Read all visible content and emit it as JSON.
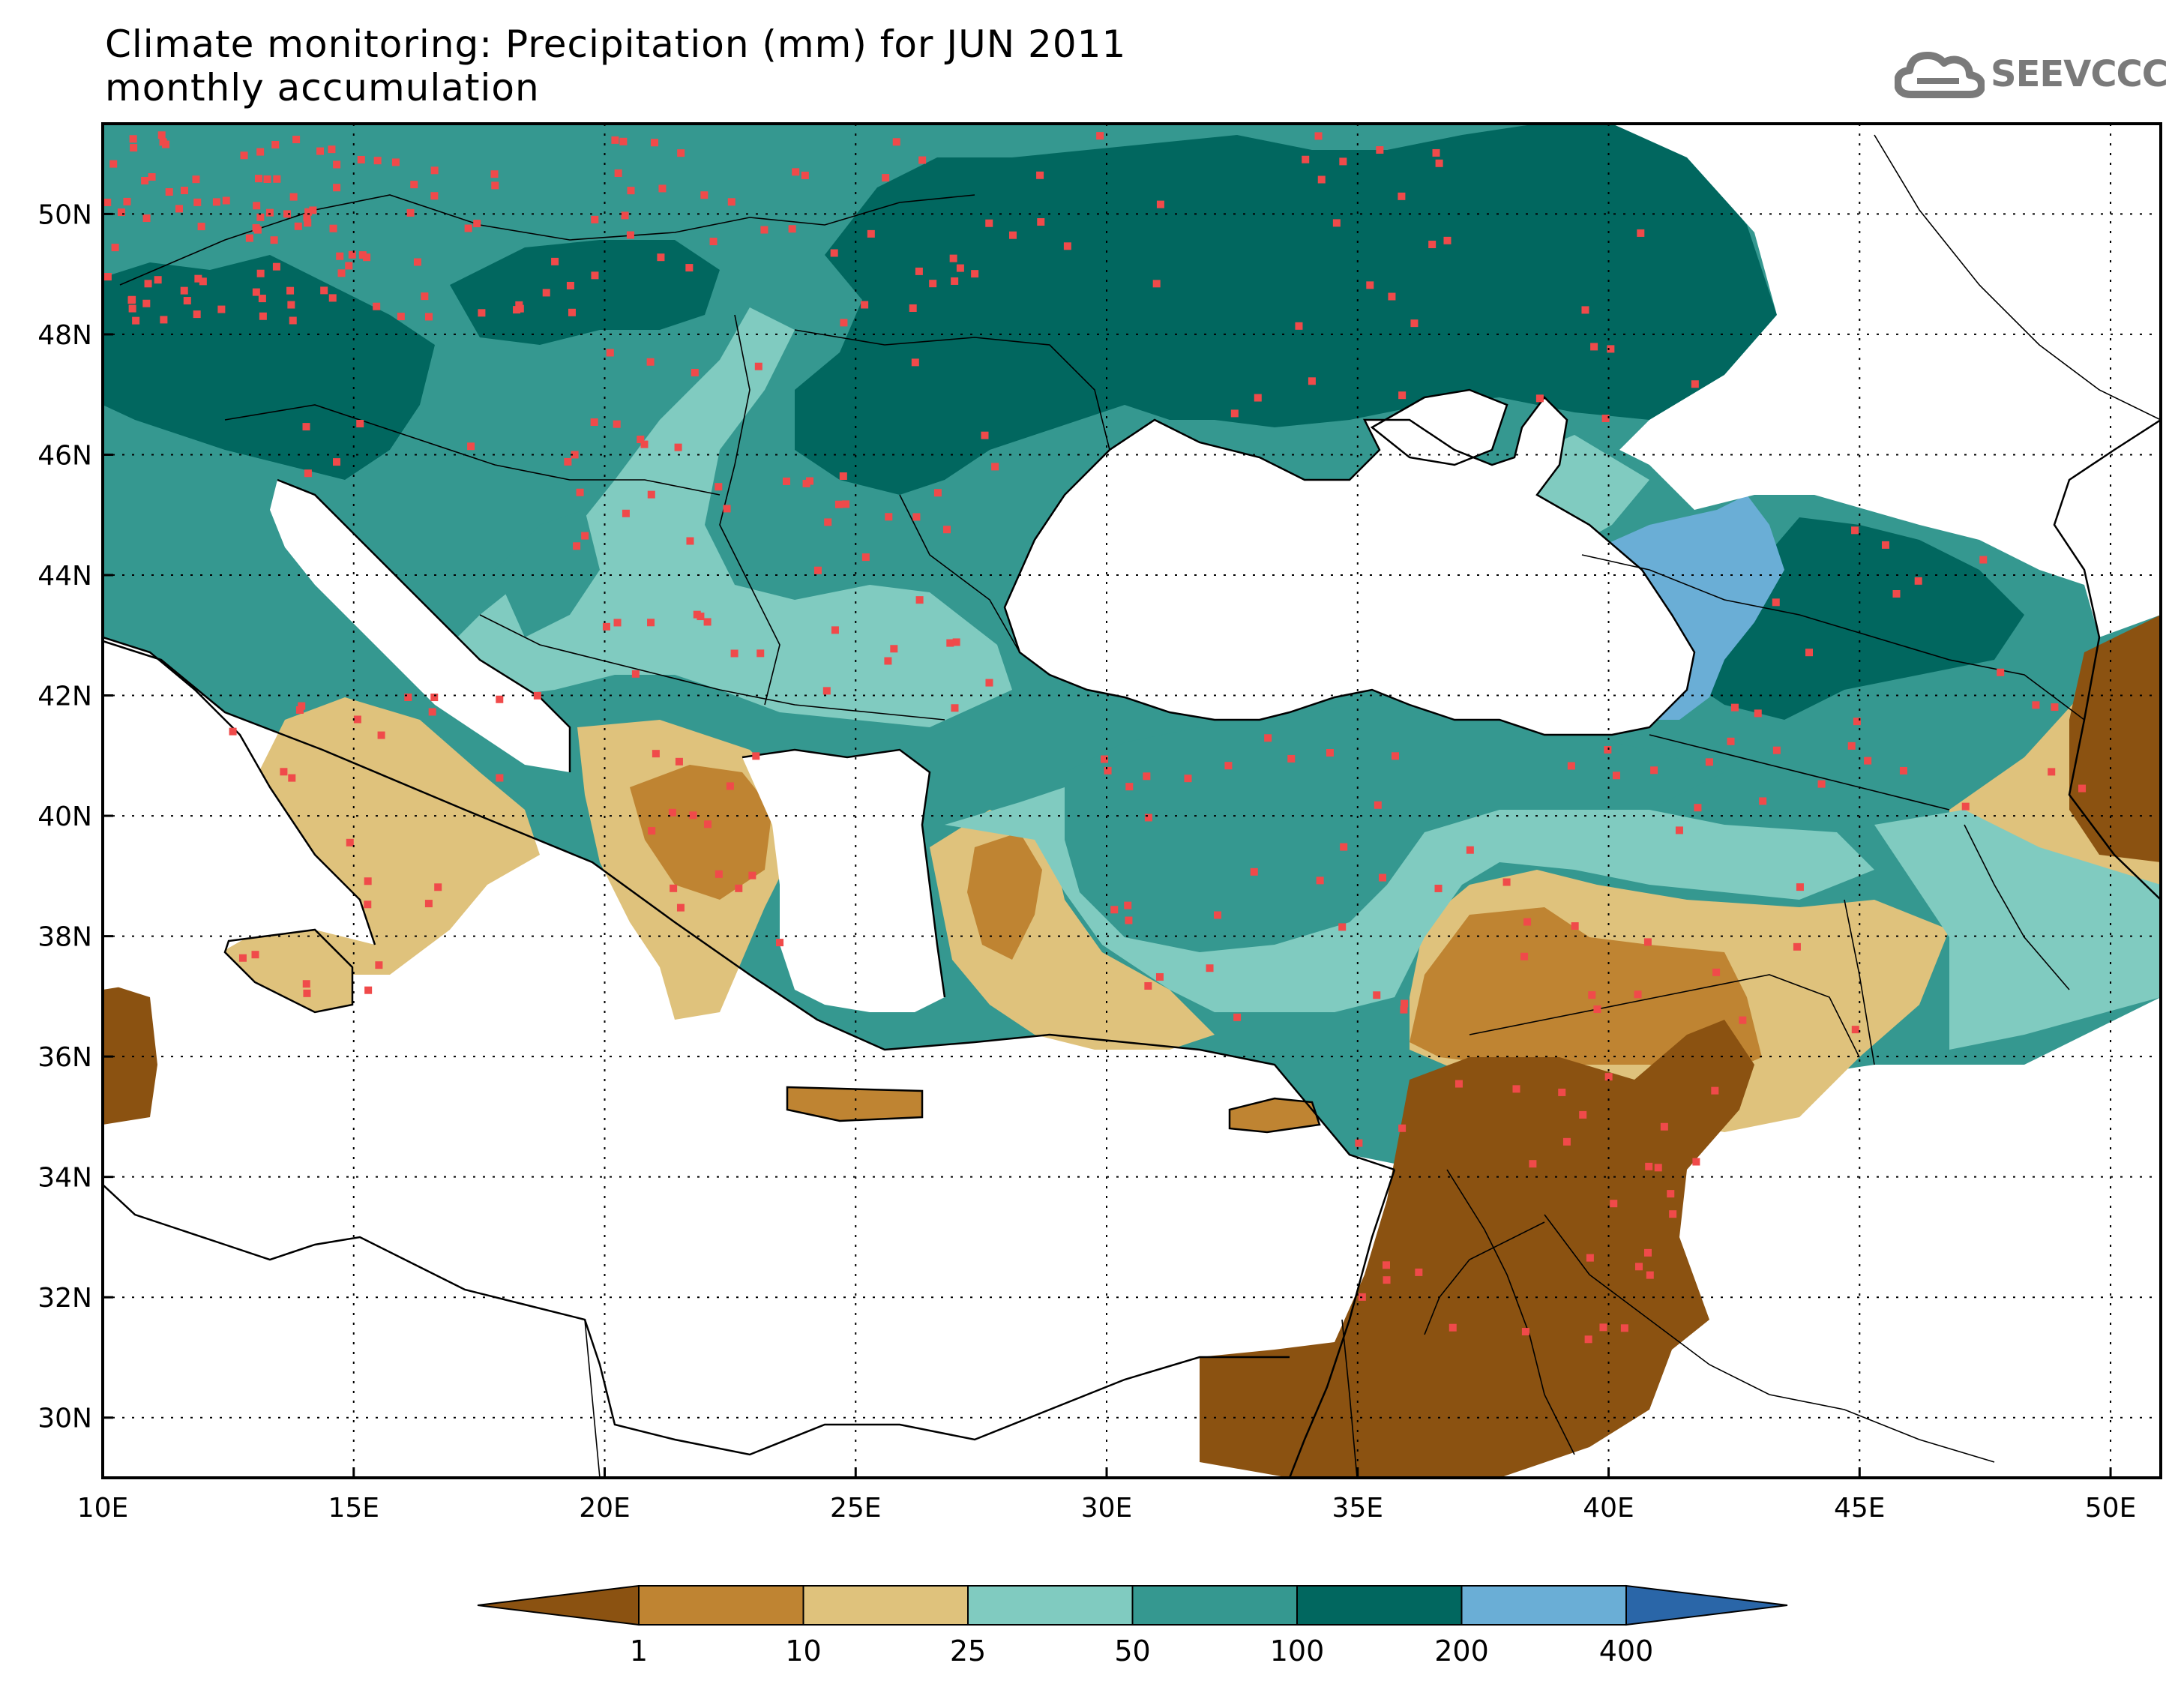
{
  "title": {
    "line1": "Climate monitoring: Precipitation (mm) for JUN 2011",
    "line2": "monthly accumulation"
  },
  "logo": {
    "text": "SEEVCCC",
    "icon": "cloud-icon",
    "color": "#7a7a7a"
  },
  "map": {
    "lon_range": [
      10,
      51
    ],
    "lat_range": [
      29,
      51.5
    ],
    "x_ticks": [
      "10E",
      "15E",
      "20E",
      "25E",
      "30E",
      "35E",
      "40E",
      "45E",
      "50E"
    ],
    "y_ticks": [
      "30N",
      "32N",
      "34N",
      "36N",
      "38N",
      "40N",
      "42N",
      "44N",
      "46N",
      "48N",
      "50N"
    ],
    "grid": "dotted",
    "station_color": "#f04a4a"
  },
  "colorbar": {
    "thresholds": [
      "1",
      "10",
      "25",
      "50",
      "100",
      "200",
      "400"
    ],
    "colors": [
      "#8b5211",
      "#bf8432",
      "#dfc27c",
      "#80cbc0",
      "#359890",
      "#01675f",
      "#6aaed6",
      "#2a66a8"
    ]
  }
}
